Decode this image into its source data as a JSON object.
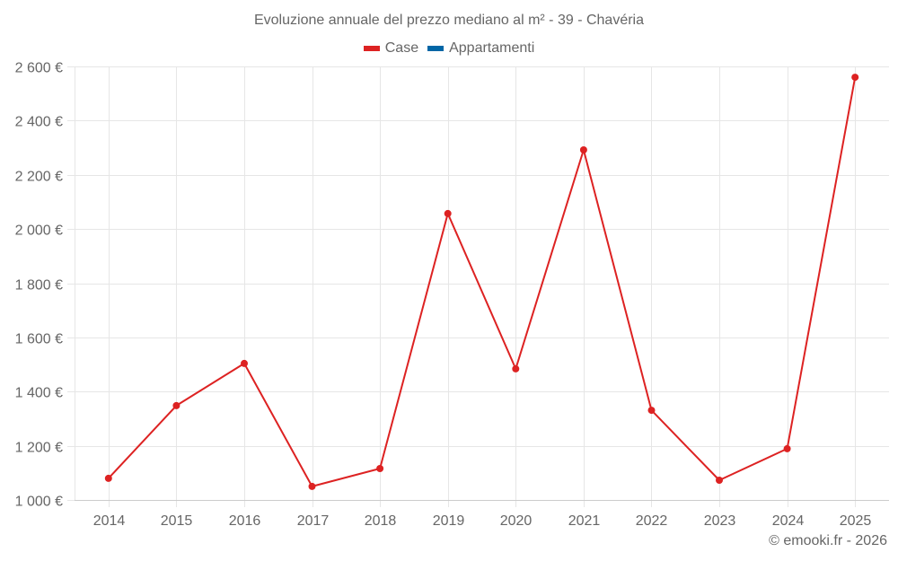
{
  "title": "Evoluzione annuale del prezzo mediano al m² - 39 - Chavéria",
  "legend": [
    {
      "label": "Case",
      "color": "#dd2222",
      "icon": "legend-swatch"
    },
    {
      "label": "Appartamenti",
      "color": "#0066a6",
      "icon": "legend-swatch"
    }
  ],
  "credit": "© emooki.fr - 2026",
  "colors": {
    "line": "#dd2222",
    "grid": "#e6e6e6",
    "axis": "#cccccc",
    "text": "#666666"
  },
  "chart_data": {
    "type": "line",
    "title": "Evoluzione annuale del prezzo mediano al m² - 39 - Chavéria",
    "xlabel": "",
    "ylabel": "",
    "categories": [
      "2014",
      "2015",
      "2016",
      "2017",
      "2018",
      "2019",
      "2020",
      "2021",
      "2022",
      "2023",
      "2024",
      "2025"
    ],
    "series": [
      {
        "name": "Case",
        "color": "#dd2222",
        "values": [
          1080,
          1348,
          1504,
          1050,
          1116,
          2057,
          1484,
          2292,
          1331,
          1073,
          1189,
          2560
        ]
      },
      {
        "name": "Appartamenti",
        "color": "#0066a6",
        "values": []
      }
    ],
    "ylim": [
      1000,
      2600
    ],
    "yticks": [
      1000,
      1200,
      1400,
      1600,
      1800,
      2000,
      2200,
      2400,
      2600
    ],
    "ytick_labels": [
      "1 000 €",
      "1 200 €",
      "1 400 €",
      "1 600 €",
      "1 800 €",
      "2 000 €",
      "2 200 €",
      "2 400 €",
      "2 600 €"
    ],
    "grid": true,
    "legend_position": "top"
  }
}
